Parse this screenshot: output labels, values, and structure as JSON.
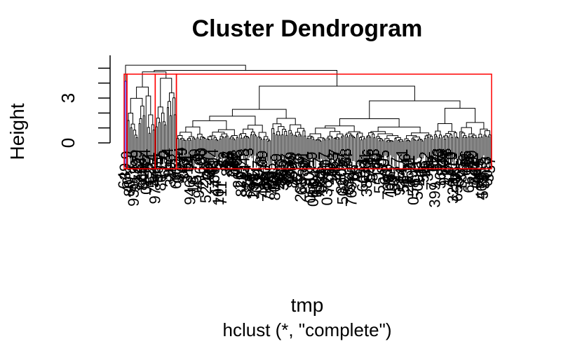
{
  "chart_data": {
    "type": "dendrogram",
    "title": "Cluster Dendrogram",
    "xlabel": "tmp",
    "ylabel": "Height",
    "sublabel": "hclust (*, \"complete\")",
    "y_ticks": [
      0,
      3
    ],
    "ylim": [
      0,
      5.5
    ],
    "max_height": 5.2,
    "n_leaves": 260,
    "clusters": [
      {
        "height": 4.6,
        "leaf_fraction": 0.008,
        "color": "#0000ff"
      },
      {
        "height": 4.6,
        "leaf_fraction": 0.075,
        "color": "#ff0000"
      },
      {
        "height": 4.6,
        "leaf_fraction": 0.058,
        "color": "#ff0000"
      },
      {
        "height": 4.6,
        "leaf_fraction": 0.859,
        "color": "#ff0000"
      }
    ],
    "rect_color": "#ff0000",
    "line_color": "#000000"
  }
}
